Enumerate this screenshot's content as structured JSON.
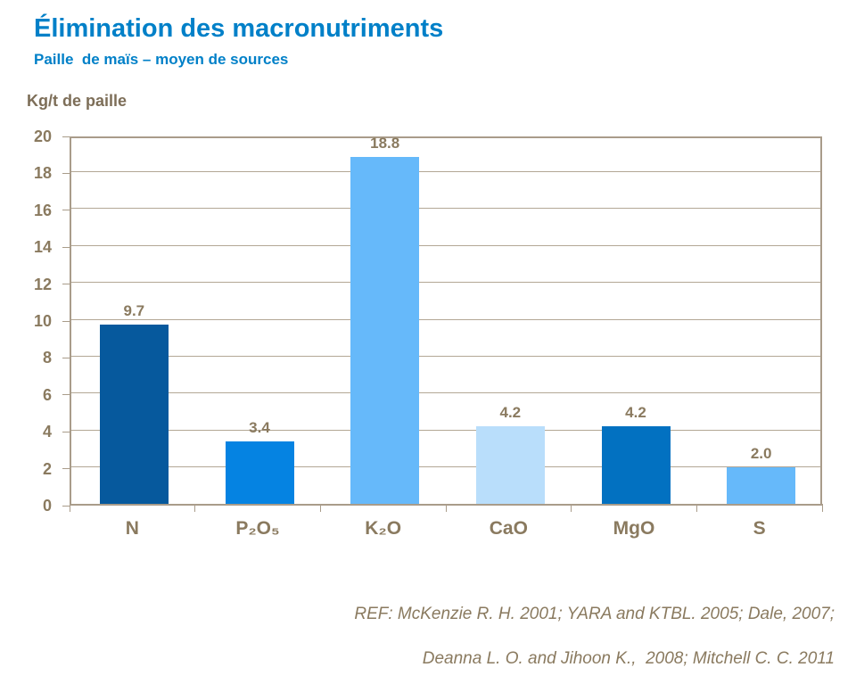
{
  "header": {
    "title": "Élimination des macronutriments",
    "subtitle": "Paille  de maïs – moyen de sources"
  },
  "chart_data": {
    "type": "bar",
    "title": "Élimination des macronutriments",
    "subtitle": "Paille  de maïs – moyen de sources",
    "ylabel": "Kg/t de paille",
    "categories": [
      "N",
      "P₂O₅",
      "K₂O",
      "CaO",
      "MgO",
      "S"
    ],
    "values": [
      9.7,
      3.4,
      18.8,
      4.2,
      4.2,
      2.0
    ],
    "value_labels": [
      "9.7",
      "3.4",
      "18.8",
      "4.2",
      "4.2",
      "2.0"
    ],
    "bar_colors": [
      "#06599d",
      "#0583e2",
      "#66b9fa",
      "#b9defb",
      "#0271c1",
      "#66b9fa"
    ],
    "ylim": [
      0,
      20
    ],
    "yticks": [
      0,
      2,
      4,
      6,
      8,
      10,
      12,
      14,
      16,
      18,
      20
    ],
    "grid": true,
    "legend": "none",
    "axis_color": "#a99c8a",
    "gridline_color": "#b3a795",
    "label_color": "#8a7a5f",
    "title_color": "#0080c8"
  },
  "footer": {
    "ref_line1": "REF: McKenzie R. H. 2001; YARA and KTBL. 2005; Dale, 2007;",
    "ref_line2": "Deanna L. O. and Jihoon K.,  2008; Mitchell C. C. 2011"
  }
}
